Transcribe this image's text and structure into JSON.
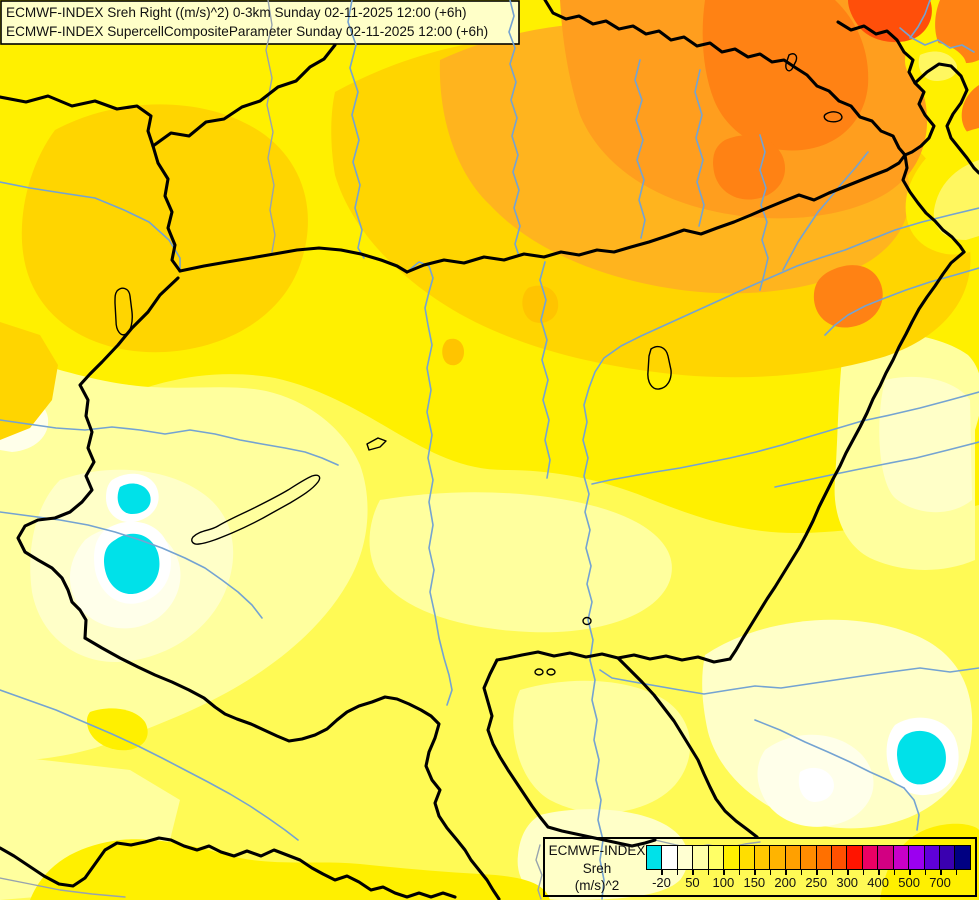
{
  "header": {
    "line1": "ECMWF-INDEX Sreh Right ((m/s)^2) 0-3km Sunday 02-11-2025 12:00 (+6h)",
    "line2": "ECMWF-INDEX SupercellCompositeParameter Sunday 02-11-2025 12:00 (+6h)"
  },
  "legend": {
    "title": "ECMWF-INDEX",
    "parameter": "Sreh",
    "units": "(m/s)^2",
    "bar_cells": [
      "#00E1E9",
      "#FFFFFF",
      "#FFFFD2",
      "#FFFFA8",
      "#FFFF66",
      "#FFF000",
      "#FFDE00",
      "#FFC800",
      "#FFB400",
      "#FFA000",
      "#FF8C00",
      "#FF7000",
      "#FF5000",
      "#FF1400",
      "#EB0064",
      "#D20082",
      "#C800C8",
      "#9B00F0",
      "#5F00D8",
      "#3A00B0",
      "#000082"
    ],
    "tick_labels": [
      {
        "text": "-20",
        "boundary": 1
      },
      {
        "text": "50",
        "boundary": 3
      },
      {
        "text": "100",
        "boundary": 5
      },
      {
        "text": "150",
        "boundary": 7
      },
      {
        "text": "200",
        "boundary": 9
      },
      {
        "text": "250",
        "boundary": 11
      },
      {
        "text": "300",
        "boundary": 13
      },
      {
        "text": "400",
        "boundary": 15
      },
      {
        "text": "500",
        "boundary": 17
      },
      {
        "text": "700",
        "boundary": 19
      }
    ]
  },
  "colors": {
    "base_yellow": "#FFFA55",
    "pale_yellow": "#FFFF9E",
    "cream": "#FFFFC8",
    "pale_cream": "#FFFFEA",
    "white": "#FFFFFF",
    "yellow": "#FFF000",
    "gold": "#FFD500",
    "deep_gold": "#FFC400",
    "amber": "#FFB41E",
    "orange": "#FF9E1E",
    "deep_orange": "#FF8214",
    "red_orange": "#FF4F0A",
    "cyan": "#00E1E9",
    "river_blue": "#74A3D2",
    "river_gray": "#97A3AE",
    "border_black": "#000000",
    "box_fill": "#FFFFC8",
    "text": "#111111"
  }
}
